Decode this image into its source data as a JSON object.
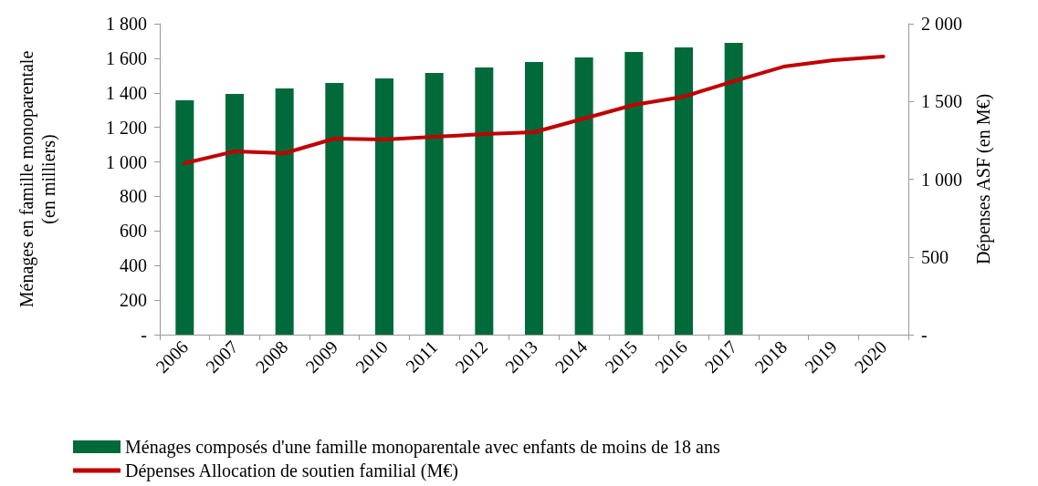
{
  "chart_data": {
    "type": "bar",
    "categories": [
      "2006",
      "2007",
      "2008",
      "2009",
      "2010",
      "2011",
      "2012",
      "2013",
      "2014",
      "2015",
      "2016",
      "2017",
      "2018",
      "2019",
      "2020"
    ],
    "ylabel": "Ménages en famille monoparentale (en milliers)",
    "y2label": "Dépenses ASF (en M€)",
    "series": [
      {
        "name": "Ménages composés d'une famille monoparentale avec enfants de moins de 18 ans",
        "color": "#006a3a",
        "values": [
          1357,
          1394,
          1425,
          1457,
          1483,
          1515,
          1547,
          1578,
          1605,
          1636,
          1663,
          1689,
          null,
          null,
          null
        ]
      },
      {
        "name": "Dépenses Allocation de soutien familial (M€)",
        "type": "line",
        "axis": "y2",
        "color": "#c00000",
        "values": [
          1103,
          1179,
          1167,
          1261,
          1255,
          1273,
          1290,
          1302,
          1390,
          1478,
          1531,
          1630,
          1724,
          1765,
          1789
        ]
      }
    ],
    "ylim": [
      0,
      1800
    ],
    "yticks": [
      {
        "value": 0,
        "label": "-"
      },
      {
        "value": 200,
        "label": "200"
      },
      {
        "value": 400,
        "label": "400"
      },
      {
        "value": 600,
        "label": "600"
      },
      {
        "value": 800,
        "label": "800"
      },
      {
        "value": 1000,
        "label": "1 000"
      },
      {
        "value": 1200,
        "label": "1 200"
      },
      {
        "value": 1400,
        "label": "1 400"
      },
      {
        "value": 1600,
        "label": "1 600"
      },
      {
        "value": 1800,
        "label": "1 800"
      }
    ],
    "y2lim": [
      0,
      2000
    ],
    "y2ticks": [
      {
        "value": 0,
        "label": "-"
      },
      {
        "value": 500,
        "label": "500"
      },
      {
        "value": 1000,
        "label": "1 000"
      },
      {
        "value": 1500,
        "label": "1 500"
      },
      {
        "value": 2000,
        "label": "2 000"
      }
    ],
    "grid": false,
    "legend": "bottom",
    "marker": "none",
    "line_style": "solid"
  }
}
